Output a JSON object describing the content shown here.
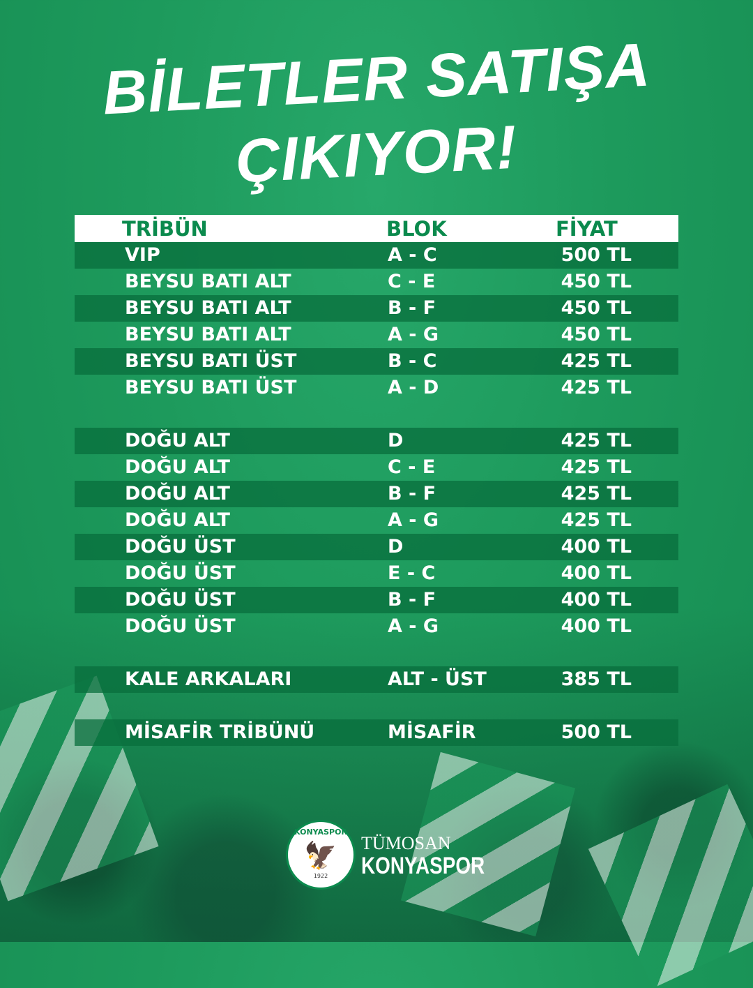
{
  "title": {
    "line1": "BİLETLER SATIŞA",
    "line2": "ÇIKIYOR!"
  },
  "table": {
    "headers": {
      "tribun": "TRİBÜN",
      "blok": "BLOK",
      "fiyat": "FİYAT"
    },
    "groups": [
      [
        {
          "tribun": "VIP",
          "blok": "A - C",
          "fiyat": "500 TL"
        },
        {
          "tribun": "BEYSU BATI ALT",
          "blok": "C - E",
          "fiyat": "450 TL"
        },
        {
          "tribun": "BEYSU BATI ALT",
          "blok": "B - F",
          "fiyat": "450 TL"
        },
        {
          "tribun": "BEYSU BATI ALT",
          "blok": "A - G",
          "fiyat": "450 TL"
        },
        {
          "tribun": "BEYSU BATI ÜST",
          "blok": "B - C",
          "fiyat": "425 TL"
        },
        {
          "tribun": "BEYSU BATI ÜST",
          "blok": "A - D",
          "fiyat": "425 TL"
        }
      ],
      [
        {
          "tribun": "DOĞU ALT",
          "blok": "D",
          "fiyat": "425 TL"
        },
        {
          "tribun": "DOĞU ALT",
          "blok": "C - E",
          "fiyat": "425 TL"
        },
        {
          "tribun": "DOĞU ALT",
          "blok": "B - F",
          "fiyat": "425 TL"
        },
        {
          "tribun": "DOĞU ALT",
          "blok": "A - G",
          "fiyat": "425 TL"
        },
        {
          "tribun": "DOĞU ÜST",
          "blok": "D",
          "fiyat": "400 TL"
        },
        {
          "tribun": "DOĞU ÜST",
          "blok": "E - C",
          "fiyat": "400 TL"
        },
        {
          "tribun": "DOĞU ÜST",
          "blok": "B - F",
          "fiyat": "400 TL"
        },
        {
          "tribun": "DOĞU ÜST",
          "blok": "A - G",
          "fiyat": "400 TL"
        }
      ],
      [
        {
          "tribun": "KALE ARKALARI",
          "blok": "ALT - ÜST",
          "fiyat": "385 TL"
        }
      ],
      [
        {
          "tribun": "MİSAFİR TRİBÜNÜ",
          "blok": "MİSAFİR",
          "fiyat": "500 TL"
        }
      ]
    ]
  },
  "footer": {
    "logo": {
      "ring_text": "KONYASPOR",
      "year": "1922"
    },
    "brand_line1": "TÜMOSAN",
    "brand_line2": "KONYASPOR"
  },
  "colors": {
    "background": "#1d9a5c",
    "header_text": "#0b8a4d",
    "row_band": "#0b7a44"
  }
}
